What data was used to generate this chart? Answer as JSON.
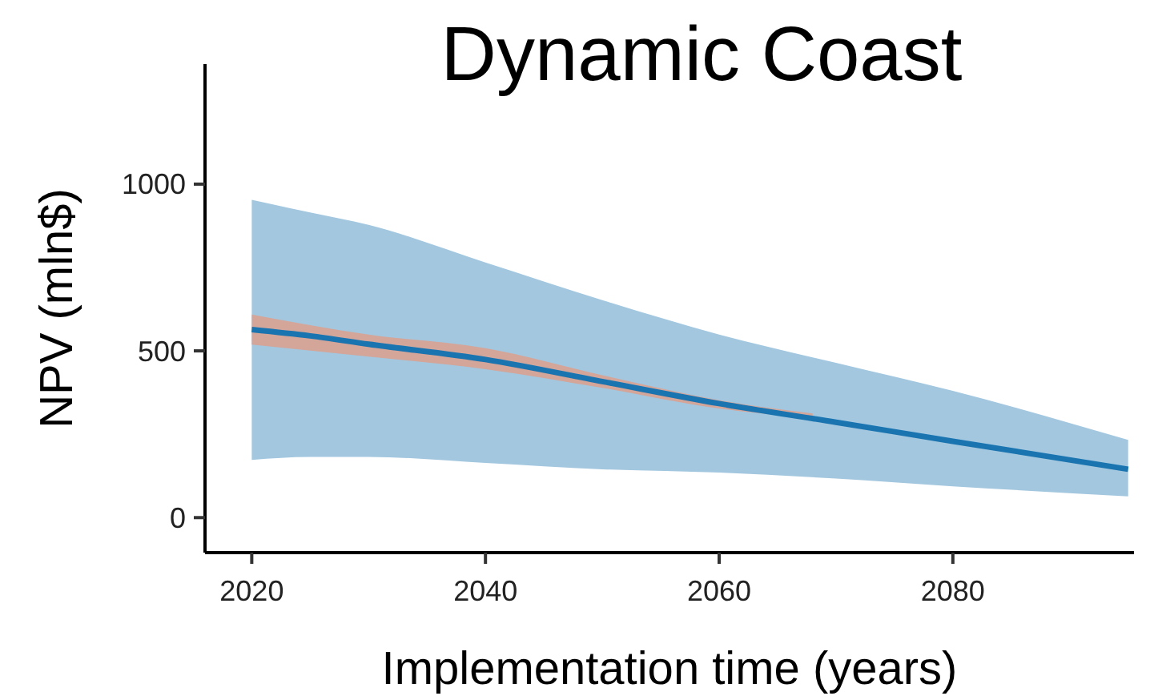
{
  "chart_data": {
    "type": "line",
    "title": "Dynamic Coast",
    "xlabel": "Implementation time (years)",
    "ylabel": "NPV (mln$)",
    "xlim": [
      2016,
      2095.5
    ],
    "xticks": [
      2020,
      2040,
      2060,
      2080
    ],
    "ylim": [
      -105,
      1360
    ],
    "yticks": [
      0,
      500,
      1000
    ],
    "grid": false,
    "marker": "none",
    "line_style": "solid",
    "series": [
      {
        "type": "line",
        "color": "#1a74b0",
        "x": [
          2020,
          2025,
          2030,
          2040,
          2050,
          2060,
          2070,
          2080,
          2095
        ],
        "values": [
          564,
          545,
          520,
          474,
          408,
          342,
          286,
          229,
          145
        ],
        "lower": [
          173,
          182,
          182,
          164,
          145,
          135,
          117,
          94,
          64
        ],
        "upper": [
          953,
          915,
          878,
          765,
          652,
          549,
          464,
          380,
          233
        ]
      },
      {
        "type": "line",
        "color": "#931e00",
        "x": [
          2020,
          2030,
          2040,
          2050,
          2060,
          2068
        ],
        "values": [
          null,
          null,
          null,
          null,
          null,
          null
        ],
        "lower": [
          519,
          483,
          445,
          389,
          327,
          298
        ],
        "upper": [
          609,
          549,
          508,
          427,
          352,
          312
        ]
      }
    ]
  }
}
